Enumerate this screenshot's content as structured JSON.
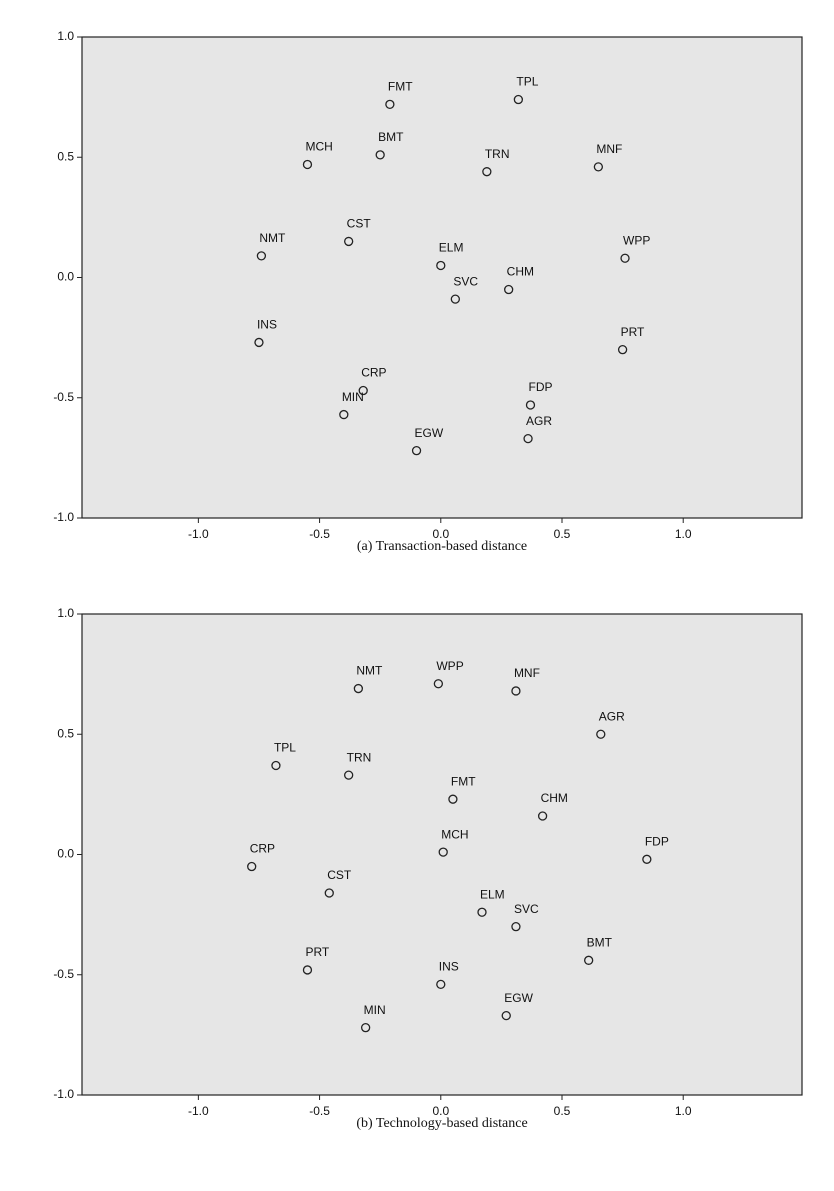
{
  "chart_data": [
    {
      "type": "scatter",
      "title": "(a) Transaction-based distance",
      "labels": [
        "FMT",
        "TPL",
        "MCH",
        "BMT",
        "TRN",
        "MNF",
        "CST",
        "NMT",
        "ELM",
        "WPP",
        "SVC",
        "CHM",
        "INS",
        "PRT",
        "CRP",
        "MIN",
        "FDP",
        "AGR",
        "EGW"
      ],
      "x": [
        -0.21,
        0.32,
        -0.55,
        -0.25,
        0.19,
        0.65,
        -0.38,
        -0.74,
        0.0,
        0.76,
        0.06,
        0.28,
        -0.75,
        0.75,
        -0.32,
        -0.4,
        0.37,
        0.36,
        -0.1
      ],
      "values": [
        0.72,
        0.74,
        0.47,
        0.51,
        0.44,
        0.46,
        0.15,
        0.09,
        0.05,
        0.08,
        -0.09,
        -0.05,
        -0.27,
        -0.3,
        -0.47,
        -0.57,
        -0.53,
        -0.67,
        -0.72
      ],
      "xlim": [
        -1.48,
        1.49
      ],
      "ylim": [
        -1.0,
        1.0
      ],
      "xticks": [
        {
          "value": -1.0,
          "label": "-1.0"
        },
        -0.5,
        {
          "value": 0.0,
          "label": "0.0"
        },
        0.5,
        {
          "value": 1.0,
          "label": "1.0"
        }
      ],
      "yticks": [
        {
          "value": -1.0,
          "label": "-1.0"
        },
        -0.5,
        {
          "value": 0.0,
          "label": "0.0"
        },
        0.5,
        {
          "value": 1.0,
          "label": "1.0"
        }
      ]
    },
    {
      "type": "scatter",
      "title": "(b) Technology-based distance",
      "labels": [
        "NMT",
        "WPP",
        "MNF",
        "AGR",
        "TPL",
        "TRN",
        "FMT",
        "CHM",
        "MCH",
        "FDP",
        "CRP",
        "CST",
        "ELM",
        "SVC",
        "BMT",
        "PRT",
        "INS",
        "EGW",
        "MIN"
      ],
      "x": [
        -0.34,
        -0.01,
        0.31,
        0.66,
        -0.68,
        -0.38,
        0.05,
        0.42,
        0.01,
        0.85,
        -0.78,
        -0.46,
        0.17,
        0.31,
        0.61,
        -0.55,
        0.0,
        0.27,
        -0.31
      ],
      "values": [
        0.69,
        0.71,
        0.68,
        0.5,
        0.37,
        0.33,
        0.23,
        0.16,
        0.01,
        -0.02,
        -0.05,
        -0.16,
        -0.24,
        -0.3,
        -0.44,
        -0.48,
        -0.54,
        -0.67,
        -0.72
      ],
      "xlim": [
        -1.48,
        1.49
      ],
      "ylim": [
        -1.0,
        1.0
      ],
      "xticks": [
        {
          "value": -1.0,
          "label": "-1.0"
        },
        -0.5,
        {
          "value": 0.0,
          "label": "0.0"
        },
        0.5,
        {
          "value": 1.0,
          "label": "1.0"
        }
      ],
      "yticks": [
        {
          "value": -1.0,
          "label": "-1.0"
        },
        -0.5,
        {
          "value": 0.0,
          "label": "0.0"
        },
        0.5,
        {
          "value": 1.0,
          "label": "1.0"
        }
      ]
    }
  ]
}
